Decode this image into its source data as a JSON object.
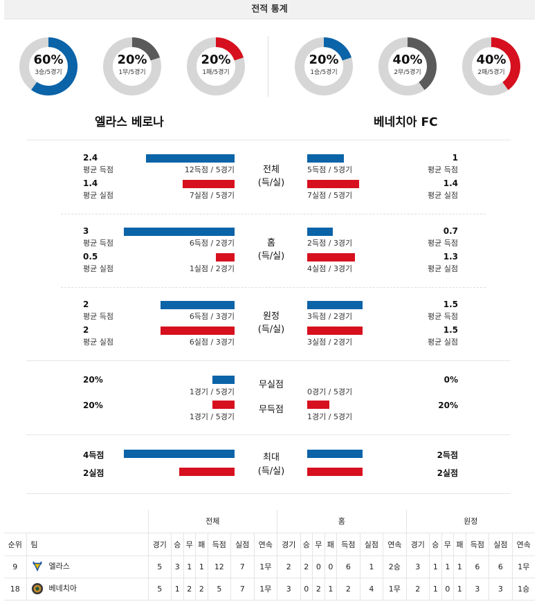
{
  "header": {
    "title": "전적 통계"
  },
  "donuts": [
    {
      "pct": "60%",
      "rec": "3승/5경기",
      "value": 0.6,
      "color": "#0b63a8"
    },
    {
      "pct": "20%",
      "rec": "1무/5경기",
      "value": 0.2,
      "color": "#5a5a5a"
    },
    {
      "pct": "20%",
      "rec": "1패/5경기",
      "value": 0.2,
      "color": "#d6101e"
    },
    {
      "pct": "20%",
      "rec": "1승/5경기",
      "value": 0.2,
      "color": "#0b63a8"
    },
    {
      "pct": "40%",
      "rec": "2무/5경기",
      "value": 0.4,
      "color": "#5a5a5a"
    },
    {
      "pct": "40%",
      "rec": "2패/5경기",
      "value": 0.4,
      "color": "#d6101e"
    }
  ],
  "teams": {
    "home": "엘라스 베로나",
    "away": "베네치아 FC"
  },
  "labels": {
    "avg_scored": "평균 득점",
    "avg_conceded": "평균 실점"
  },
  "sections": {
    "total": {
      "title1": "전체",
      "title2": "(득/실)",
      "home_scored": "2.4",
      "home_scored_detail": "12득점 / 5경기",
      "home_scored_value": 2.4,
      "home_conceded": "1.4",
      "home_conceded_detail": "7실점 / 5경기",
      "home_conceded_value": 1.4,
      "away_scored": "1",
      "away_scored_detail": "5득점 / 5경기",
      "away_scored_value": 1,
      "away_conceded": "1.4",
      "away_conceded_detail": "7실점 / 5경기",
      "away_conceded_value": 1.4
    },
    "home": {
      "title1": "홈",
      "title2": "(득/실)",
      "home_scored": "3",
      "home_scored_detail": "6득점 / 2경기",
      "home_scored_value": 3,
      "home_conceded": "0.5",
      "home_conceded_detail": "1실점 / 2경기",
      "home_conceded_value": 0.5,
      "away_scored": "0.7",
      "away_scored_detail": "2득점 / 3경기",
      "away_scored_value": 0.7,
      "away_conceded": "1.3",
      "away_conceded_detail": "4실점 / 3경기",
      "away_conceded_value": 1.3
    },
    "away": {
      "title1": "원정",
      "title2": "(득/실)",
      "home_scored": "2",
      "home_scored_detail": "6득점 / 3경기",
      "home_scored_value": 2,
      "home_conceded": "2",
      "home_conceded_detail": "6실점 / 3경기",
      "home_conceded_value": 2,
      "away_scored": "1.5",
      "away_scored_detail": "3득점 / 2경기",
      "away_scored_value": 1.5,
      "away_conceded": "1.5",
      "away_conceded_detail": "3실점 / 2경기",
      "away_conceded_value": 1.5
    }
  },
  "clean": {
    "title_clean": "무실점",
    "title_noscore": "무득점",
    "home_clean": "20%",
    "home_clean_detail": "1경기 / 5경기",
    "home_clean_value": 0.2,
    "away_clean": "0%",
    "away_clean_detail": "0경기 / 5경기",
    "away_clean_value": 0,
    "home_noscore": "20%",
    "home_noscore_detail": "1경기 / 5경기",
    "home_noscore_value": 0.2,
    "away_noscore": "20%",
    "away_noscore_detail": "1경기 / 5경기",
    "away_noscore_value": 0.2
  },
  "maximum": {
    "title1": "최대",
    "title2": "(득/실)",
    "home_scored": "4득점",
    "home_scored_value": 4,
    "home_conceded": "2실점",
    "home_conceded_value": 2,
    "away_scored": "2득점",
    "away_scored_value": 2,
    "away_conceded": "2실점",
    "away_conceded_value": 2
  },
  "table": {
    "groups": [
      "전체",
      "홈",
      "원정"
    ],
    "col_rank": "순위",
    "col_team": "팀",
    "cols": [
      "경기",
      "승",
      "무",
      "패",
      "득점",
      "실점",
      "연속"
    ],
    "rows": [
      {
        "rank": "9",
        "team": "엘라스",
        "logo": "hellas-verona-logo",
        "total": [
          "5",
          "3",
          "1",
          "1",
          "12",
          "7",
          "1무"
        ],
        "home": [
          "2",
          "2",
          "0",
          "0",
          "6",
          "1",
          "2승"
        ],
        "away": [
          "3",
          "1",
          "1",
          "1",
          "6",
          "6",
          "1무"
        ]
      },
      {
        "rank": "18",
        "team": "베네치아",
        "logo": "venezia-logo",
        "total": [
          "5",
          "1",
          "2",
          "2",
          "5",
          "7",
          "1무"
        ],
        "home": [
          "3",
          "0",
          "2",
          "1",
          "2",
          "4",
          "1무"
        ],
        "away": [
          "2",
          "1",
          "0",
          "1",
          "3",
          "3",
          "1승"
        ]
      }
    ]
  }
}
